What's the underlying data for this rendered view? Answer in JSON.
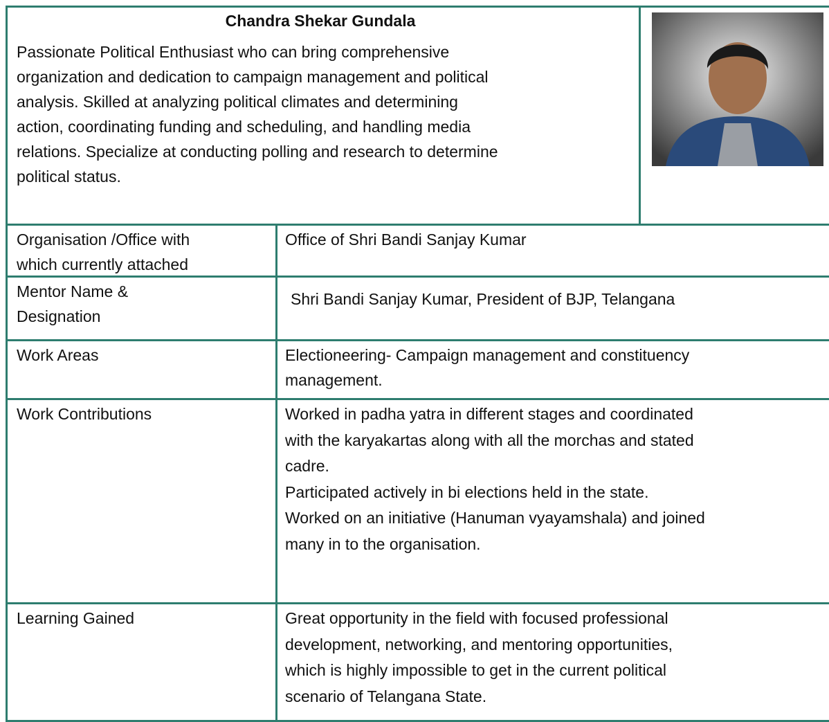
{
  "header": {
    "name": "Chandra Shekar Gundala",
    "summary": [
      "Passionate Political Enthusiast who can bring comprehensive",
      "organization and dedication to campaign management and political",
      "analysis. Skilled at analyzing political climates and determining",
      "action, coordinating funding and scheduling, and handling media",
      "relations. Specialize at conducting polling and research to determine",
      "political status."
    ]
  },
  "rows": [
    {
      "label": [
        "Organisation /Office with",
        "which currently attached"
      ],
      "value": [
        "Office of Shri Bandi Sanjay Kumar"
      ]
    },
    {
      "label": [
        "Mentor Name &",
        "Designation"
      ],
      "value": [
        "Shri Bandi Sanjay Kumar, President of BJP, Telangana"
      ]
    },
    {
      "label": [
        "Work Areas"
      ],
      "value": [
        "Electioneering- Campaign management and constituency",
        "management."
      ]
    },
    {
      "label": [
        "Work Contributions"
      ],
      "value": [
        "Worked in padha yatra in different stages and coordinated",
        "with the karyakartas along with all the morchas and stated",
        "cadre.",
        "Participated actively in bi elections held in the state.",
        "Worked on an initiative (Hanuman vyayamshala) and joined",
        "many in to the organisation."
      ]
    },
    {
      "label": [
        "Learning Gained"
      ],
      "value": [
        "Great opportunity in the field with focused professional",
        "development, networking, and mentoring opportunities,",
        "which is highly impossible to get in the current political",
        "scenario of Telangana State."
      ]
    }
  ]
}
